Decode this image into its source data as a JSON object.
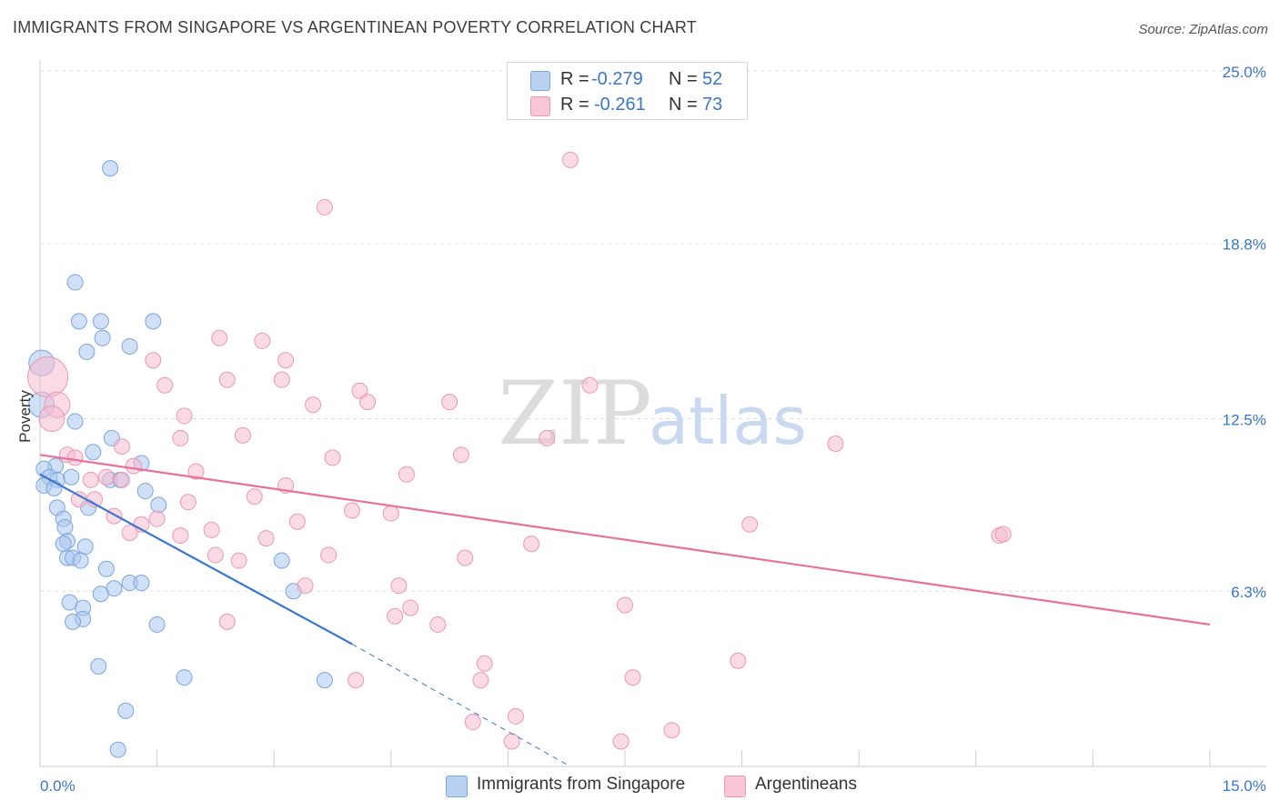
{
  "title": "IMMIGRANTS FROM SINGAPORE VS ARGENTINEAN POVERTY CORRELATION CHART",
  "source": "Source: ZipAtlas.com",
  "watermark": {
    "zip": "ZIP",
    "atlas": "atlas"
  },
  "legend": {
    "r_label": "R =",
    "n_label": "N =",
    "rows": [
      {
        "r": "-0.279",
        "n": "52"
      },
      {
        "r": "-0.261",
        "n": "73"
      }
    ]
  },
  "colors": {
    "blue_fill": "#a9c7ef",
    "blue_stroke": "#7aa6dd",
    "blue_line": "#3a77d0",
    "pink_fill": "#f6bcd0",
    "pink_stroke": "#eb98b5",
    "pink_line": "#e8709a",
    "tick_label": "#3a77c7"
  },
  "chart_data": {
    "type": "scatter",
    "title": "IMMIGRANTS FROM SINGAPORE VS ARGENTINEAN POVERTY CORRELATION CHART",
    "ylabel": "Poverty",
    "xlabel": "",
    "xlim": [
      0,
      15
    ],
    "ylim": [
      0,
      25
    ],
    "x_tick_labels": [
      "0.0%",
      "15.0%"
    ],
    "y_ticks": [
      6.3,
      12.5,
      18.8,
      25.0
    ],
    "y_tick_labels": [
      "6.3%",
      "12.5%",
      "18.8%",
      "25.0%"
    ],
    "series": [
      {
        "name": "Immigrants from Singapore",
        "r": -0.279,
        "n": 52,
        "trend": {
          "x0": 0.0,
          "y0": 10.5,
          "x1": 4.0,
          "y1": 4.4,
          "dash_to_x": 6.8,
          "dash_to_y": 0.0
        },
        "points": [
          [
            0.9,
            21.5
          ],
          [
            0.45,
            17.4
          ],
          [
            0.5,
            16.0
          ],
          [
            0.78,
            16.0
          ],
          [
            1.45,
            16.0
          ],
          [
            0.8,
            15.4
          ],
          [
            1.15,
            15.1
          ],
          [
            0.6,
            14.9
          ],
          [
            0.02,
            14.5
          ],
          [
            0.02,
            13.0
          ],
          [
            0.45,
            12.4
          ],
          [
            0.92,
            11.8
          ],
          [
            0.68,
            11.3
          ],
          [
            0.2,
            10.8
          ],
          [
            0.05,
            10.7
          ],
          [
            1.3,
            10.9
          ],
          [
            0.12,
            10.4
          ],
          [
            0.22,
            10.3
          ],
          [
            0.05,
            10.1
          ],
          [
            0.18,
            10.0
          ],
          [
            0.9,
            10.3
          ],
          [
            1.03,
            10.3
          ],
          [
            0.4,
            10.4
          ],
          [
            1.35,
            9.9
          ],
          [
            1.52,
            9.4
          ],
          [
            0.22,
            9.3
          ],
          [
            0.62,
            9.3
          ],
          [
            0.3,
            8.9
          ],
          [
            0.32,
            8.6
          ],
          [
            0.35,
            8.1
          ],
          [
            0.3,
            8.0
          ],
          [
            0.58,
            7.9
          ],
          [
            0.35,
            7.5
          ],
          [
            0.42,
            7.5
          ],
          [
            0.52,
            7.4
          ],
          [
            3.1,
            7.4
          ],
          [
            0.85,
            7.1
          ],
          [
            1.15,
            6.6
          ],
          [
            1.3,
            6.6
          ],
          [
            0.95,
            6.4
          ],
          [
            3.25,
            6.3
          ],
          [
            0.78,
            6.2
          ],
          [
            0.38,
            5.9
          ],
          [
            0.55,
            5.7
          ],
          [
            0.55,
            5.3
          ],
          [
            0.42,
            5.2
          ],
          [
            1.5,
            5.1
          ],
          [
            0.75,
            3.6
          ],
          [
            1.85,
            3.2
          ],
          [
            3.65,
            3.1
          ],
          [
            1.1,
            2.0
          ],
          [
            1.0,
            0.6
          ]
        ]
      },
      {
        "name": "Argentineans",
        "r": -0.261,
        "n": 73,
        "trend": {
          "x0": 0.0,
          "y0": 11.2,
          "x1": 15.0,
          "y1": 5.1
        },
        "points": [
          [
            6.8,
            21.8
          ],
          [
            3.65,
            20.1
          ],
          [
            2.3,
            15.4
          ],
          [
            2.85,
            15.3
          ],
          [
            1.45,
            14.6
          ],
          [
            3.15,
            14.6
          ],
          [
            0.1,
            14.0
          ],
          [
            2.4,
            13.9
          ],
          [
            3.1,
            13.9
          ],
          [
            1.6,
            13.7
          ],
          [
            4.1,
            13.5
          ],
          [
            7.05,
            13.7
          ],
          [
            0.22,
            13.0
          ],
          [
            3.5,
            13.0
          ],
          [
            4.2,
            13.1
          ],
          [
            5.25,
            13.1
          ],
          [
            1.85,
            12.6
          ],
          [
            0.15,
            12.5
          ],
          [
            2.6,
            11.9
          ],
          [
            1.8,
            11.8
          ],
          [
            6.5,
            11.8
          ],
          [
            10.2,
            11.6
          ],
          [
            1.05,
            11.5
          ],
          [
            0.35,
            11.2
          ],
          [
            0.45,
            11.1
          ],
          [
            3.75,
            11.1
          ],
          [
            5.4,
            11.2
          ],
          [
            1.2,
            10.8
          ],
          [
            2.0,
            10.6
          ],
          [
            4.7,
            10.5
          ],
          [
            0.85,
            10.4
          ],
          [
            0.65,
            10.3
          ],
          [
            1.05,
            10.3
          ],
          [
            3.15,
            10.1
          ],
          [
            2.75,
            9.7
          ],
          [
            0.5,
            9.6
          ],
          [
            0.7,
            9.6
          ],
          [
            1.9,
            9.5
          ],
          [
            4.0,
            9.2
          ],
          [
            4.5,
            9.1
          ],
          [
            0.95,
            9.0
          ],
          [
            1.5,
            8.9
          ],
          [
            3.3,
            8.8
          ],
          [
            1.3,
            8.7
          ],
          [
            9.1,
            8.7
          ],
          [
            2.2,
            8.5
          ],
          [
            1.15,
            8.4
          ],
          [
            1.8,
            8.3
          ],
          [
            2.9,
            8.2
          ],
          [
            12.3,
            8.3
          ],
          [
            12.35,
            8.35
          ],
          [
            6.3,
            8.0
          ],
          [
            2.25,
            7.6
          ],
          [
            3.7,
            7.6
          ],
          [
            5.45,
            7.5
          ],
          [
            2.55,
            7.4
          ],
          [
            3.4,
            6.5
          ],
          [
            4.6,
            6.5
          ],
          [
            7.5,
            5.8
          ],
          [
            4.75,
            5.7
          ],
          [
            4.55,
            5.4
          ],
          [
            2.4,
            5.2
          ],
          [
            5.1,
            5.1
          ],
          [
            5.7,
            3.7
          ],
          [
            8.95,
            3.8
          ],
          [
            4.05,
            3.1
          ],
          [
            5.65,
            3.1
          ],
          [
            7.6,
            3.2
          ],
          [
            6.1,
            1.8
          ],
          [
            5.55,
            1.6
          ],
          [
            8.1,
            1.3
          ],
          [
            6.05,
            0.9
          ],
          [
            7.45,
            0.9
          ]
        ]
      }
    ]
  }
}
